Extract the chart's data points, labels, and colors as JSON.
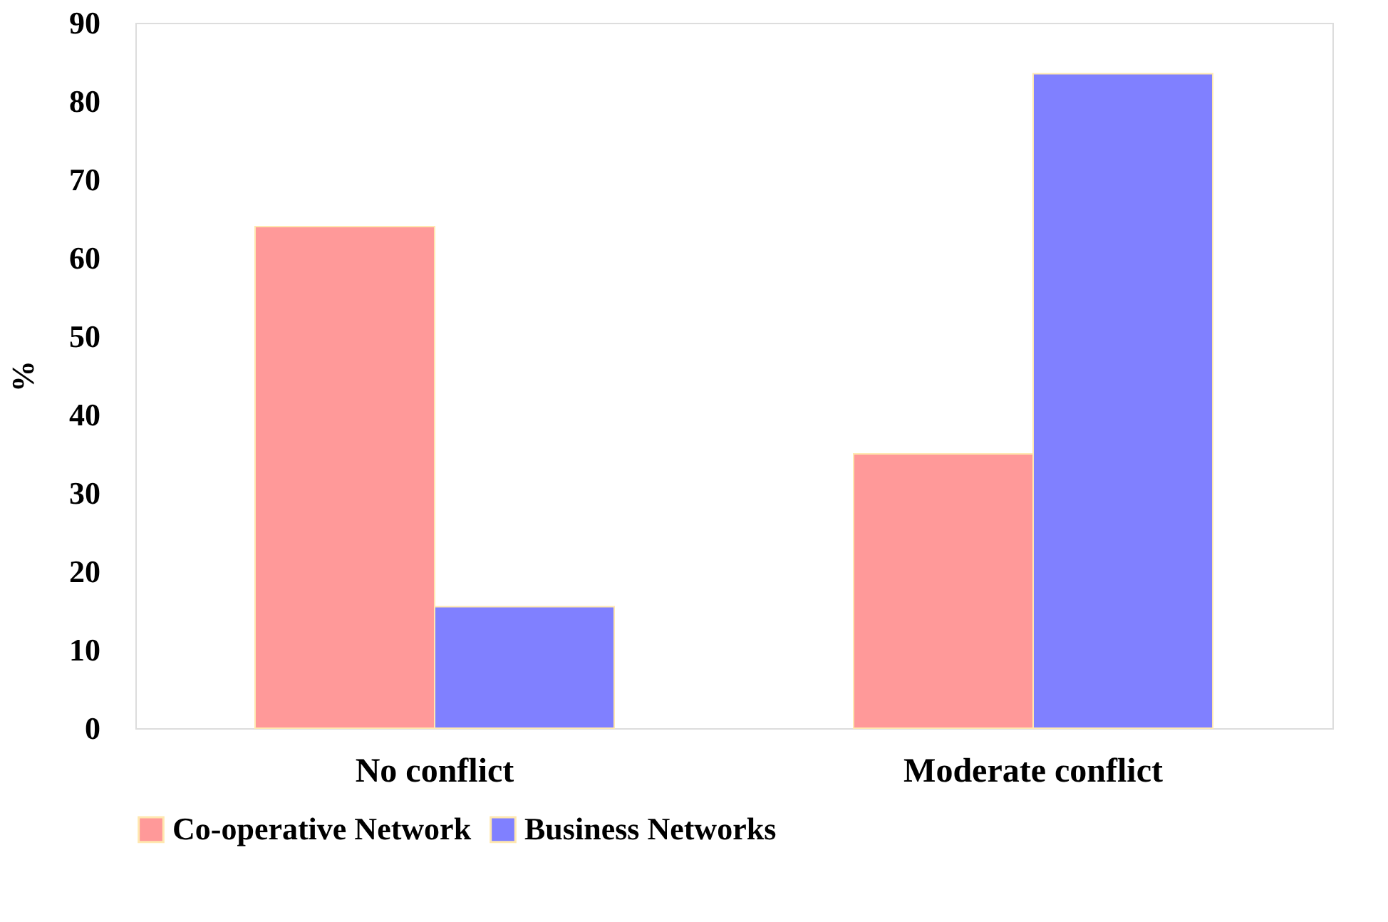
{
  "chart_data": {
    "type": "bar",
    "ylabel": "%",
    "categories": [
      "No conflict",
      "Moderate conflict"
    ],
    "series": [
      {
        "name": "Co-operative Network",
        "color": "#ff9999",
        "values": [
          64,
          35
        ]
      },
      {
        "name": "Business Networks",
        "color": "#8080ff",
        "values": [
          15.5,
          83.5
        ]
      }
    ],
    "ylim": [
      0,
      90
    ],
    "yticks": [
      0,
      10,
      20,
      30,
      40,
      50,
      60,
      70,
      80,
      90
    ],
    "grid": false,
    "legend": "bottom"
  }
}
